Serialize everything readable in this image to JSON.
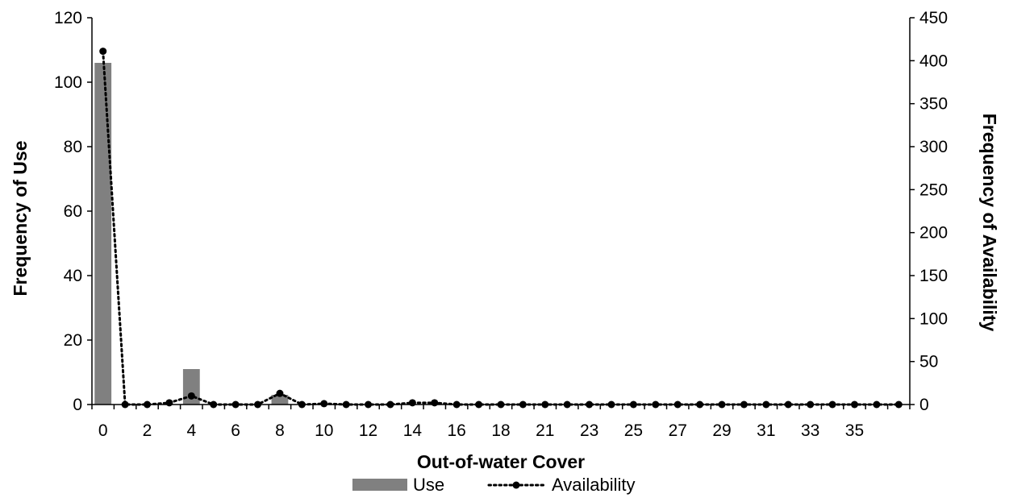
{
  "chart_data": {
    "type": "bar",
    "x": [
      0,
      1,
      2,
      3,
      4,
      5,
      6,
      7,
      8,
      9,
      10,
      11,
      12,
      13,
      14,
      15,
      16,
      17,
      18,
      19,
      20,
      21,
      22,
      23,
      24,
      25,
      26,
      27,
      28,
      29,
      30,
      31,
      32,
      33,
      34,
      35,
      36
    ],
    "x_tick_labels": [
      "0",
      "2",
      "4",
      "6",
      "8",
      "10",
      "12",
      "14",
      "16",
      "18",
      "21",
      "23",
      "25",
      "27",
      "29",
      "31",
      "33",
      "35"
    ],
    "series": [
      {
        "name": "Use",
        "type": "bar",
        "axis": "left",
        "color": "#808080",
        "values": [
          106,
          0,
          0,
          0,
          11,
          0,
          0,
          0,
          3,
          0,
          0,
          0,
          0,
          0,
          0,
          0,
          0,
          0,
          0,
          0,
          0,
          0,
          0,
          0,
          0,
          0,
          0,
          0,
          0,
          0,
          0,
          0,
          0,
          0,
          0,
          0,
          0
        ]
      },
      {
        "name": "Availability",
        "type": "line",
        "axis": "right",
        "color": "#000000",
        "line_style": "dotted",
        "marker": "circle",
        "values": [
          411,
          0,
          0,
          2,
          10,
          0,
          0,
          0,
          13,
          0,
          1,
          0,
          0,
          0,
          2,
          2,
          0,
          0,
          0,
          0,
          0,
          0,
          0,
          0,
          0,
          0,
          0,
          0,
          0,
          0,
          0,
          0,
          0,
          0,
          0,
          0,
          0
        ]
      }
    ],
    "xlabel": "Out-of-water Cover",
    "ylabel": "Frequency of Use",
    "y2label": "Frequency of Availability",
    "ylim": [
      0,
      120
    ],
    "y_ticks": [
      0,
      20,
      40,
      60,
      80,
      100,
      120
    ],
    "y2lim": [
      0,
      450
    ],
    "y2_ticks": [
      0,
      50,
      100,
      150,
      200,
      250,
      300,
      350,
      400,
      450
    ],
    "grid": false,
    "legend_position": "bottom"
  }
}
